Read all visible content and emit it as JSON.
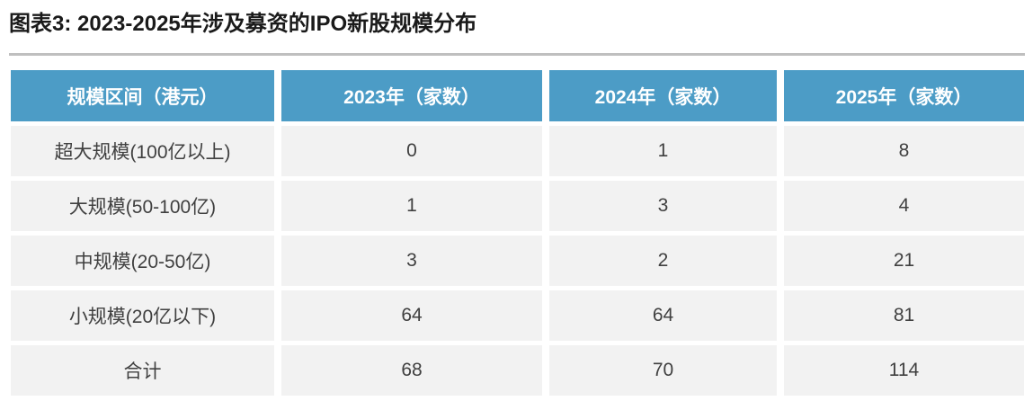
{
  "figure": {
    "title": "图表3: 2023-2025年涉及募资的IPO新股规模分布"
  },
  "colors": {
    "header_bg": "#4C9CC6",
    "header_text": "#FFFFFF",
    "row_bg": "#F2F2F2",
    "cell_text": "#404040",
    "divider": "#BFBFBF",
    "title_text": "#1A1A1A"
  },
  "chart_data": {
    "type": "table",
    "title": "图表3: 2023-2025年涉及募资的IPO新股规模分布",
    "columns": [
      "规模区间（港元）",
      "2023年（家数）",
      "2024年（家数）",
      "2025年（家数）"
    ],
    "rows": [
      {
        "label": "超大规模(100亿以上)",
        "values": [
          "0",
          "1",
          "8"
        ]
      },
      {
        "label": "大规模(50-100亿)",
        "values": [
          "1",
          "3",
          "4"
        ]
      },
      {
        "label": "中规模(20-50亿)",
        "values": [
          "3",
          "2",
          "21"
        ]
      },
      {
        "label": "小规模(20亿以下)",
        "values": [
          "64",
          "64",
          "81"
        ]
      },
      {
        "label": "合计",
        "values": [
          "68",
          "70",
          "114"
        ]
      }
    ]
  }
}
